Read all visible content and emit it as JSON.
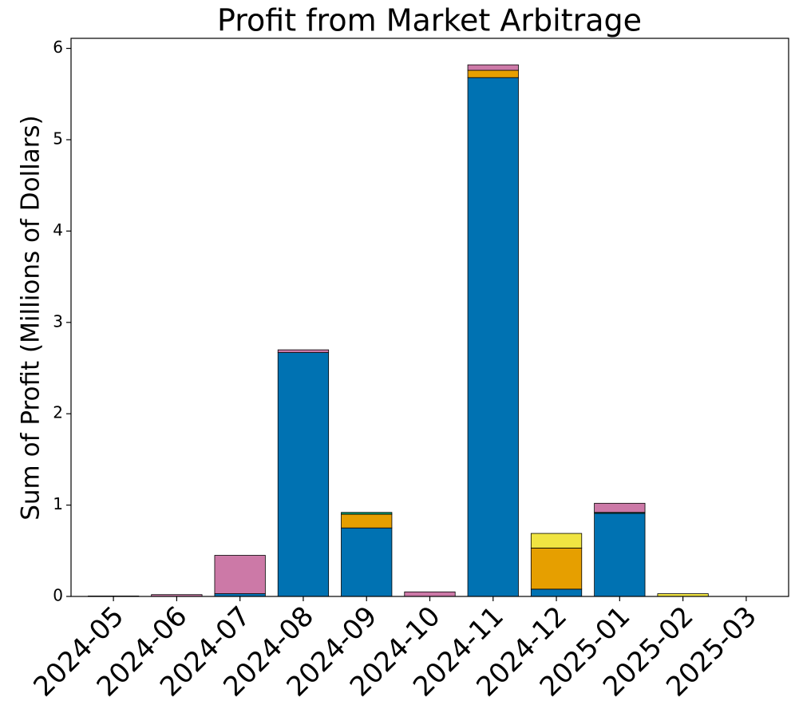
{
  "chart_data": {
    "type": "stacked_bar",
    "title": "Profit from Market Arbitrage",
    "y_label": "Sum of Profit (Millions of Dollars)",
    "categories": [
      "2024-05",
      "2024-06",
      "2024-07",
      "2024-08",
      "2024-09",
      "2024-10",
      "2024-11",
      "2024-12",
      "2025-01",
      "2025-02",
      "2025-03"
    ],
    "series": [
      {
        "color": "#0072b2",
        "values": [
          0,
          0,
          0.03,
          2.67,
          0.75,
          0,
          5.68,
          0.08,
          0.91,
          0,
          0
        ]
      },
      {
        "color": "#e69f00",
        "values": [
          0,
          0,
          0,
          0,
          0.15,
          0,
          0.08,
          0.45,
          0,
          0,
          0
        ]
      },
      {
        "color": "#009e73",
        "values": [
          0,
          0,
          0,
          0,
          0.02,
          0,
          0,
          0,
          0.01,
          0,
          0
        ]
      },
      {
        "color": "#cc79a7",
        "values": [
          0.005,
          0.02,
          0.42,
          0.03,
          0,
          0.05,
          0.06,
          0,
          0.1,
          0,
          0
        ]
      },
      {
        "color": "#f0e442",
        "values": [
          0,
          0,
          0,
          0,
          0,
          0,
          0,
          0.16,
          0,
          0.03,
          0
        ]
      }
    ],
    "ylim": [
      0,
      6.11
    ],
    "yticks": [
      0,
      1,
      2,
      3,
      4,
      5,
      6
    ]
  }
}
